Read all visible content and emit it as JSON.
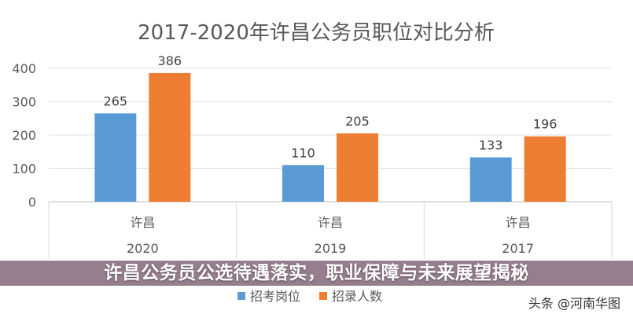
{
  "chart_data": {
    "type": "bar",
    "title": "2017-2020年许昌公务员职位对比分析",
    "categories": [
      {
        "city": "许昌",
        "year": "2020"
      },
      {
        "city": "许昌",
        "year": "2019"
      },
      {
        "city": "许昌",
        "year": "2017"
      }
    ],
    "series": [
      {
        "name": "招考岗位",
        "values": [
          265,
          110,
          133
        ],
        "color": "#5b9bd5"
      },
      {
        "name": "招录人数",
        "values": [
          386,
          205,
          196
        ],
        "color": "#ed7d31"
      }
    ],
    "ylim": [
      0,
      400
    ],
    "yticks": [
      0,
      100,
      200,
      300,
      400
    ],
    "grid": true,
    "legend": "bottom"
  },
  "banner": {
    "text": "许昌公务员公选待遇落实，职业保障与未来展望揭秘"
  },
  "watermark": {
    "text": "头条 @河南华图"
  }
}
